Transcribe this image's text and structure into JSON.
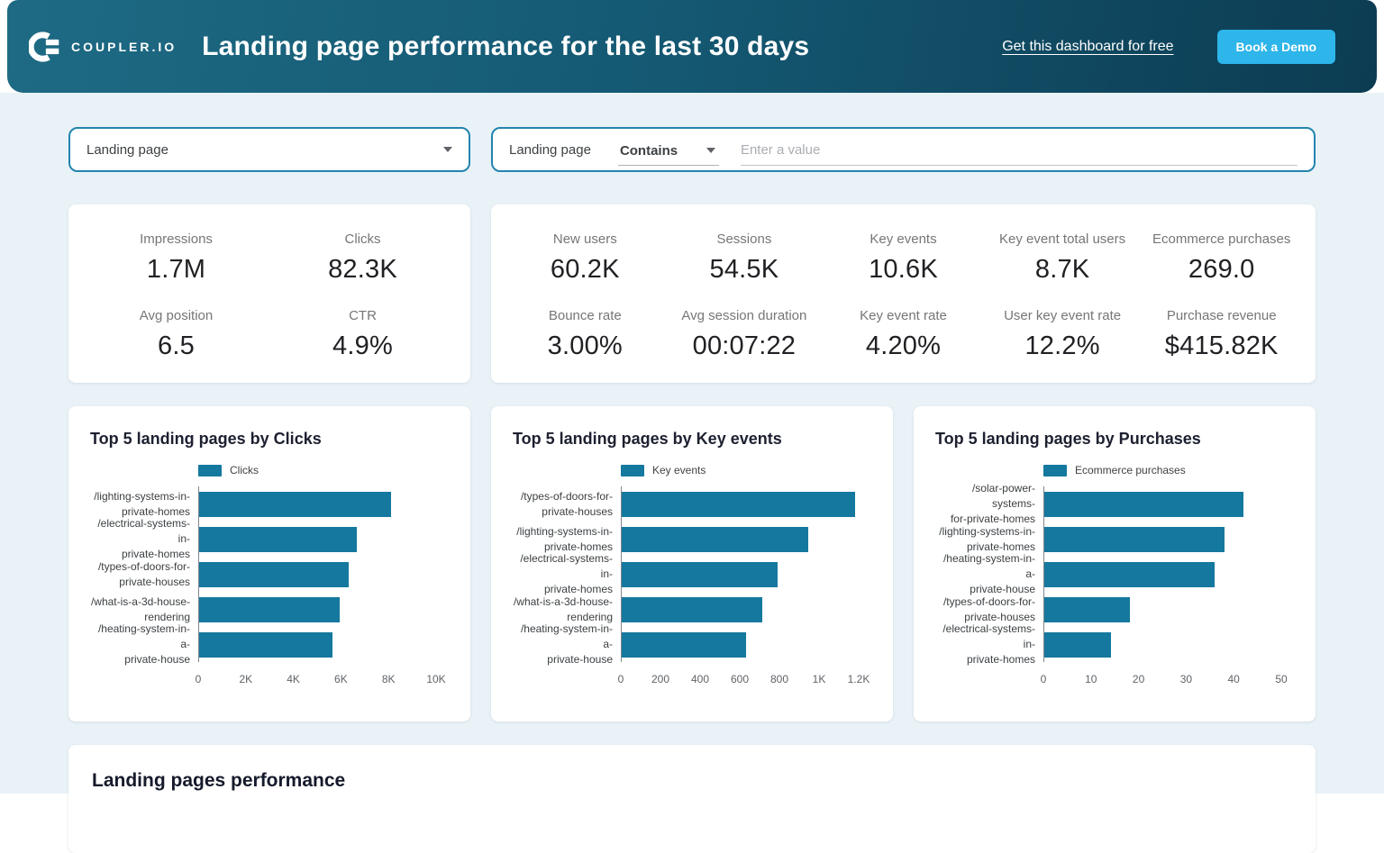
{
  "header": {
    "logo_text": "COUPLER.IO",
    "title": "Landing page performance for the last 30 days",
    "link_label": "Get this dashboard for free",
    "cta_label": "Book a Demo"
  },
  "filters": {
    "dimension_dropdown": {
      "label": "Landing page"
    },
    "contains_filter": {
      "field_label": "Landing page",
      "operator": "Contains",
      "input_placeholder": "Enter a value",
      "input_value": ""
    }
  },
  "kpis": {
    "card1": [
      {
        "label": "Impressions",
        "value": "1.7M"
      },
      {
        "label": "Clicks",
        "value": "82.3K"
      },
      {
        "label": "Avg position",
        "value": "6.5"
      },
      {
        "label": "CTR",
        "value": "4.9%"
      }
    ],
    "card2": [
      {
        "label": "New users",
        "value": "60.2K"
      },
      {
        "label": "Sessions",
        "value": "54.5K"
      },
      {
        "label": "Key events",
        "value": "10.6K"
      },
      {
        "label": "Key event total users",
        "value": "8.7K"
      },
      {
        "label": "Ecommerce purchases",
        "value": "269.0"
      },
      {
        "label": "Bounce rate",
        "value": "3.00%"
      },
      {
        "label": "Avg session duration",
        "value": "00:07:22"
      },
      {
        "label": "Key event rate",
        "value": "4.20%"
      },
      {
        "label": "User key event rate",
        "value": "12.2%"
      },
      {
        "label": "Purchase revenue",
        "value": "$415.82K"
      }
    ]
  },
  "chart_data": [
    {
      "type": "bar",
      "orientation": "horizontal",
      "title": "Top 5 landing pages by Clicks",
      "legend": "Clicks",
      "categories": [
        "/lighting-systems-in-private-homes",
        "/electrical-systems-in-private-homes",
        "/types-of-doors-for-private-houses",
        "/what-is-a-3d-house-rendering",
        "/heating-system-in-a-private-house"
      ],
      "category_lines": [
        [
          "/lighting-systems-in-",
          "private-homes"
        ],
        [
          "/electrical-systems-in-",
          "private-homes"
        ],
        [
          "/types-of-doors-for-",
          "private-houses"
        ],
        [
          "/what-is-a-3d-house-",
          "rendering"
        ],
        [
          "/heating-system-in-a-",
          "private-house"
        ]
      ],
      "values": [
        8100,
        6650,
        6320,
        5950,
        5630
      ],
      "xlim": [
        0,
        10000
      ],
      "x_ticks": [
        "0",
        "2K",
        "4K",
        "6K",
        "8K",
        "10K"
      ],
      "bar_color": "#15789e",
      "grid": false,
      "legend_position": "top-left-of-plot"
    },
    {
      "type": "bar",
      "orientation": "horizontal",
      "title": "Top 5 landing pages by Key events",
      "legend": "Key events",
      "categories": [
        "/types-of-doors-for-private-houses",
        "/lighting-systems-in-private-homes",
        "/electrical-systems-in-private-homes",
        "/what-is-a-3d-house-rendering",
        "/heating-system-in-a-private-house"
      ],
      "category_lines": [
        [
          "/types-of-doors-for-",
          "private-houses"
        ],
        [
          "/lighting-systems-in-",
          "private-homes"
        ],
        [
          "/electrical-systems-in-",
          "private-homes"
        ],
        [
          "/what-is-a-3d-house-",
          "rendering"
        ],
        [
          "/heating-system-in-a-",
          "private-house"
        ]
      ],
      "values": [
        1180,
        945,
        790,
        710,
        630
      ],
      "xlim": [
        0,
        1200
      ],
      "x_ticks": [
        "0",
        "200",
        "400",
        "600",
        "800",
        "1K",
        "1.2K"
      ],
      "bar_color": "#15789e",
      "grid": false,
      "legend_position": "top-left-of-plot"
    },
    {
      "type": "bar",
      "orientation": "horizontal",
      "title": "Top 5 landing pages by Purchases",
      "legend": "Ecommerce purchases",
      "categories": [
        "/solar-power-systems-for-private-homes",
        "/lighting-systems-in-private-homes",
        "/heating-system-in-a-private-house",
        "/types-of-doors-for-private-houses",
        "/electrical-systems-in-private-homes"
      ],
      "category_lines": [
        [
          "/solar-power-systems-",
          "for-private-homes"
        ],
        [
          "/lighting-systems-in-",
          "private-homes"
        ],
        [
          "/heating-system-in-a-",
          "private-house"
        ],
        [
          "/types-of-doors-for-",
          "private-houses"
        ],
        [
          "/electrical-systems-in-",
          "private-homes"
        ]
      ],
      "values": [
        42,
        38,
        36,
        18,
        14
      ],
      "xlim": [
        0,
        50
      ],
      "x_ticks": [
        "0",
        "10",
        "20",
        "30",
        "40",
        "50"
      ],
      "bar_color": "#15789e",
      "grid": false,
      "legend_position": "top-left-of-plot"
    }
  ],
  "bottom_section": {
    "title": "Landing pages performance"
  },
  "colors": {
    "header_gradient_start": "#1e6a84",
    "header_gradient_end": "#0c3c52",
    "accent_button": "#2eb5ea",
    "bar": "#15789e",
    "page_background": "#e9f2f7",
    "filter_border": "#2384ae"
  }
}
